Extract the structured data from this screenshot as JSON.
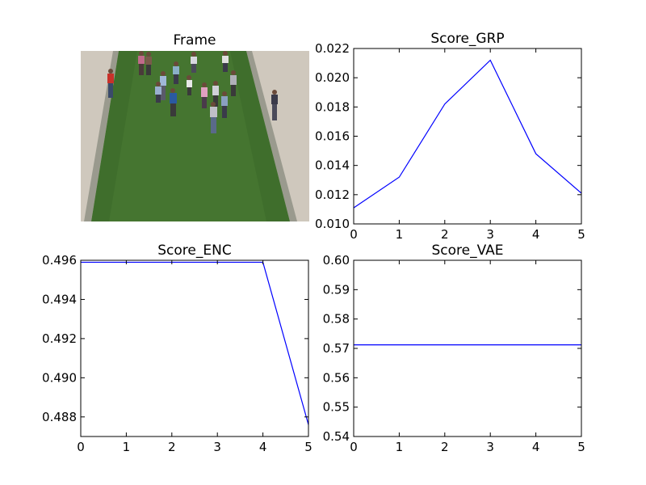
{
  "figure": {
    "frame_panel": {
      "title": "Frame",
      "scene": {
        "grass_color": "#3f6e2c",
        "path_color": "#cfc8bd",
        "curb_color": "#9a9a8e",
        "pedestrian_count": 16
      }
    }
  },
  "chart_data": [
    {
      "type": "line",
      "title": "Score_GRP",
      "xlabel": "",
      "ylabel": "",
      "x": [
        0,
        1,
        2,
        3,
        4,
        5
      ],
      "series": [
        {
          "values": [
            0.0111,
            0.0132,
            0.0182,
            0.0212,
            0.0148,
            0.0121
          ],
          "color": "#0000ff"
        }
      ],
      "xlim": [
        0,
        5
      ],
      "ylim": [
        0.01,
        0.022
      ],
      "xticks": [
        "0",
        "1",
        "2",
        "3",
        "4",
        "5"
      ],
      "yticks": [
        {
          "value": 0.01,
          "label": "0.010"
        },
        {
          "value": 0.012,
          "label": "0.012"
        },
        {
          "value": 0.014,
          "label": "0.014"
        },
        {
          "value": 0.016,
          "label": "0.016"
        },
        {
          "value": 0.018,
          "label": "0.018"
        },
        {
          "value": 0.02,
          "label": "0.020"
        },
        {
          "value": 0.022,
          "label": "0.022"
        }
      ],
      "grid": false
    },
    {
      "type": "line",
      "title": "Score_ENC",
      "xlabel": "",
      "ylabel": "",
      "x": [
        0,
        1,
        2,
        3,
        4,
        5
      ],
      "series": [
        {
          "values": [
            0.4959,
            0.4959,
            0.4959,
            0.4959,
            0.4959,
            0.4876
          ],
          "color": "#0000ff"
        }
      ],
      "xlim": [
        0,
        5
      ],
      "ylim": [
        0.487,
        0.496
      ],
      "xticks": [
        "0",
        "1",
        "2",
        "3",
        "4",
        "5"
      ],
      "yticks": [
        {
          "value": 0.488,
          "label": "0.488"
        },
        {
          "value": 0.49,
          "label": "0.490"
        },
        {
          "value": 0.492,
          "label": "0.492"
        },
        {
          "value": 0.494,
          "label": "0.494"
        },
        {
          "value": 0.496,
          "label": "0.496"
        }
      ],
      "grid": false
    },
    {
      "type": "line",
      "title": "Score_VAE",
      "xlabel": "",
      "ylabel": "",
      "x": [
        0,
        1,
        2,
        3,
        4,
        5
      ],
      "series": [
        {
          "values": [
            0.5712,
            0.5712,
            0.5712,
            0.5712,
            0.5712,
            0.5712
          ],
          "color": "#0000ff"
        }
      ],
      "xlim": [
        0,
        5
      ],
      "ylim": [
        0.54,
        0.6
      ],
      "xticks": [
        "0",
        "1",
        "2",
        "3",
        "4",
        "5"
      ],
      "yticks": [
        {
          "value": 0.54,
          "label": "0.54"
        },
        {
          "value": 0.55,
          "label": "0.55"
        },
        {
          "value": 0.56,
          "label": "0.56"
        },
        {
          "value": 0.57,
          "label": "0.57"
        },
        {
          "value": 0.58,
          "label": "0.58"
        },
        {
          "value": 0.59,
          "label": "0.59"
        },
        {
          "value": 0.6,
          "label": "0.60"
        }
      ],
      "grid": false
    }
  ]
}
